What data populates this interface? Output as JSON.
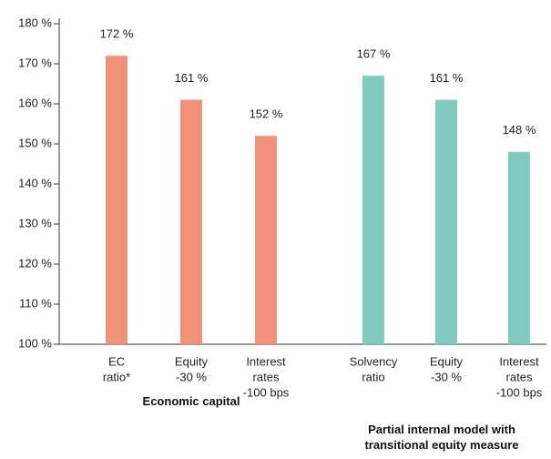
{
  "chart_data": {
    "type": "bar",
    "categories": [
      [
        "EC",
        "ratio*"
      ],
      [
        "Equity",
        "-30 %"
      ],
      [
        "Interest",
        "rates",
        "-100 bps"
      ],
      [
        "Solvency",
        "ratio"
      ],
      [
        "Equity",
        "-30 %"
      ],
      [
        "Interest",
        "rates",
        "-100 bps"
      ]
    ],
    "values": [
      172,
      161,
      152,
      167,
      161,
      148
    ],
    "value_labels": [
      "172 %",
      "161 %",
      "152 %",
      "167 %",
      "161 %",
      "148 %"
    ],
    "colors": [
      "#f0917a",
      "#f0917a",
      "#f0917a",
      "#80cbbd",
      "#80cbbd",
      "#80cbbd"
    ],
    "group_labels": [
      "Economic capital",
      "Partial internal model with transitional equity measure"
    ],
    "ylim": [
      100,
      180
    ],
    "yticks": [
      {
        "value": 100,
        "label": "100 %"
      },
      {
        "value": 110,
        "label": "110 %"
      },
      {
        "value": 120,
        "label": "120 %"
      },
      {
        "value": 130,
        "label": "130 %"
      },
      {
        "value": 140,
        "label": "140 %"
      },
      {
        "value": 150,
        "label": "150 %"
      },
      {
        "value": 160,
        "label": "160 %"
      },
      {
        "value": 170,
        "label": "170 %"
      },
      {
        "value": 180,
        "label": "180 %"
      }
    ]
  }
}
